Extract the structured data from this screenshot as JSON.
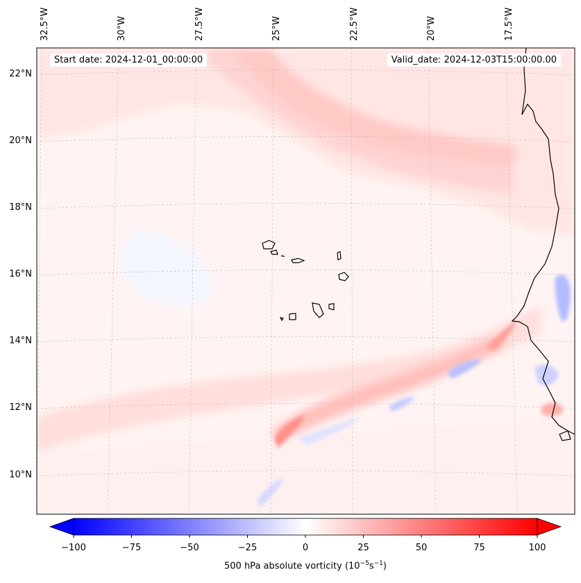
{
  "map": {
    "start_date": "Start date: 2024-12-01_00:00:00",
    "valid_date": "Valid_date: 2024-12-03T15:00:00.00",
    "lon_labels": [
      "32.5°W",
      "30°W",
      "27.5°W",
      "25°W",
      "22.5°W",
      "20°W",
      "17.5°W"
    ],
    "lat_labels": [
      "22°N",
      "20°N",
      "18°N",
      "16°N",
      "14°N",
      "12°N",
      "10°N"
    ],
    "extent": {
      "lon_min": -32.5,
      "lon_max": -15.0,
      "lat_min": 8.9,
      "lat_max": 22.8
    }
  },
  "colorbar": {
    "label": "500 hPa absolute vorticity (10",
    "label_exp": "−5",
    "label_mid": "s",
    "label_exp2": "−1",
    "label_end": ")",
    "min": -100,
    "max": 100,
    "ticks": [
      "−100",
      "−75",
      "−50",
      "−25",
      "0",
      "25",
      "50",
      "75",
      "100"
    ],
    "cmap": "bwr",
    "colors": {
      "negative": "#0000ff",
      "zero": "#ffffff",
      "positive": "#ff0000"
    }
  }
}
